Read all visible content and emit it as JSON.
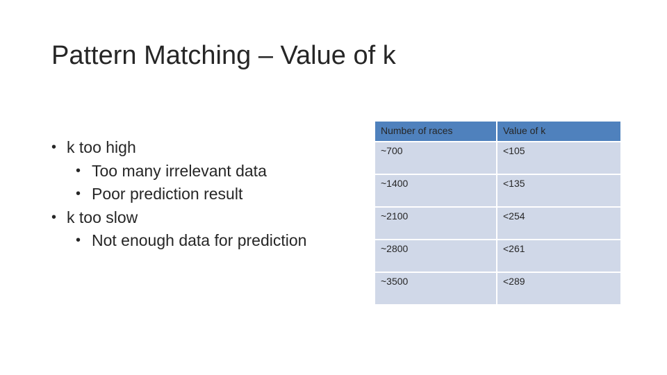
{
  "slide": {
    "title": "Pattern Matching – Value of k"
  },
  "bullets": [
    {
      "level": 1,
      "text": "k too high"
    },
    {
      "level": 2,
      "text": "Too many irrelevant data"
    },
    {
      "level": 2,
      "text": "Poor prediction result"
    },
    {
      "level": 1,
      "text": "k too slow"
    },
    {
      "level": 2,
      "text": "Not enough data for prediction"
    }
  ],
  "bullet_glyph": "•",
  "table": {
    "headers": [
      "Number of races",
      "Value of k"
    ],
    "rows": [
      [
        "~700",
        "<105"
      ],
      [
        "~1400",
        "<135"
      ],
      [
        "~2100",
        "<254"
      ],
      [
        "~2800",
        "<261"
      ],
      [
        "~3500",
        "<289"
      ]
    ],
    "colors": {
      "header": "#4f81bd",
      "row": "#d0d8e8"
    }
  }
}
